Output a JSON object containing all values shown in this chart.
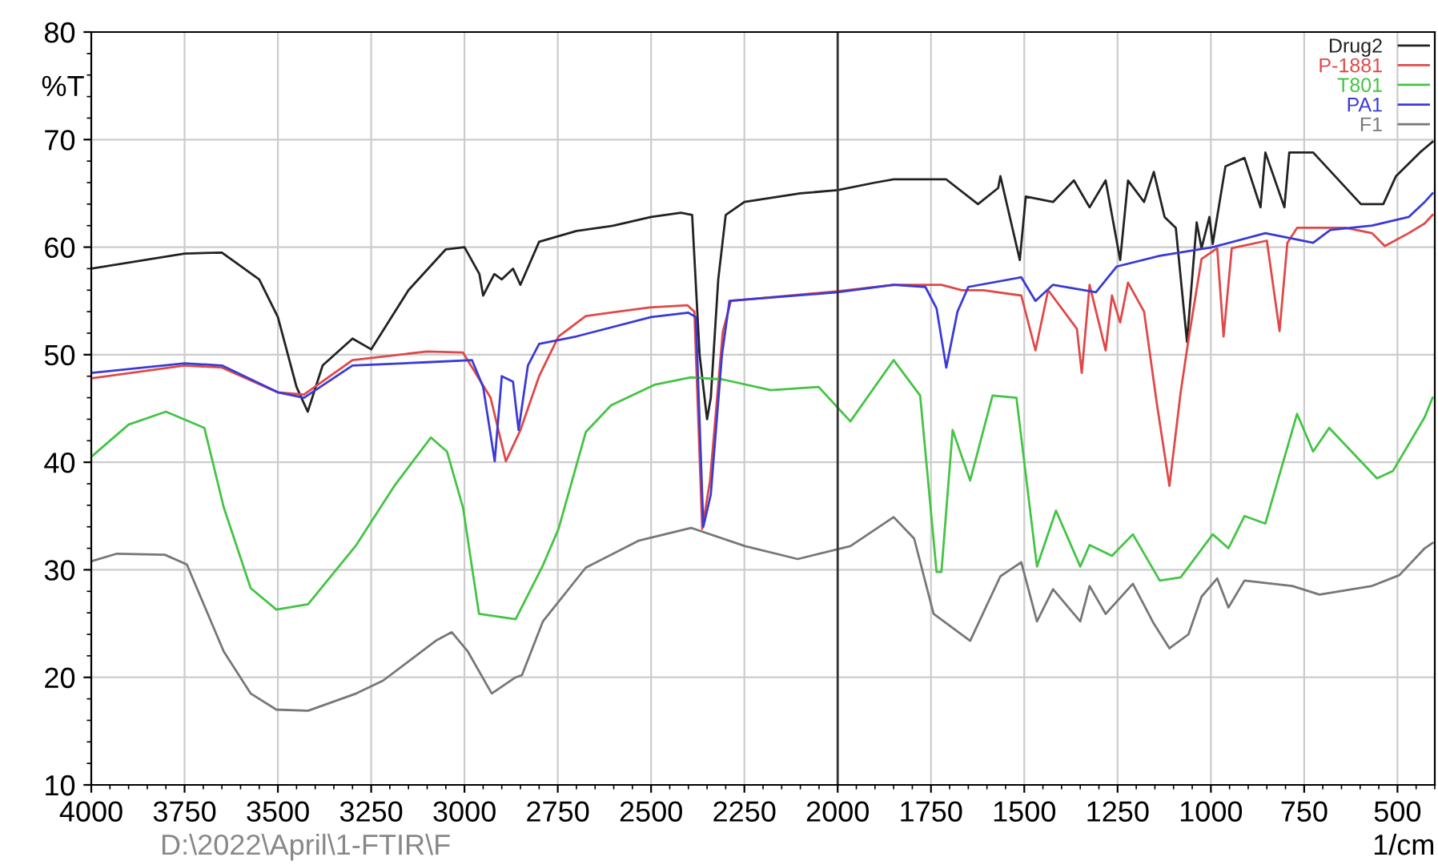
{
  "chart_data": {
    "type": "line",
    "ylabel": "%T",
    "xlabel": "1/cm",
    "annotations": [
      "D:\\2022\\April\\1-FTIR\\F"
    ],
    "xlim": [
      4000,
      400
    ],
    "xticks": [
      4000,
      3750,
      3500,
      3250,
      3000,
      2750,
      2500,
      2250,
      2000,
      1750,
      1500,
      1250,
      1000,
      750,
      500
    ],
    "ylim": [
      10,
      80
    ],
    "yticks": [
      10,
      20,
      30,
      40,
      50,
      60,
      70,
      80
    ],
    "grid": true,
    "legend": "top right",
    "line_style": "solid",
    "marker": "none",
    "ref_lines": [
      {
        "axis": "x",
        "value": 2000,
        "color": "#333333"
      }
    ],
    "series": [
      {
        "name": "Drug2",
        "color": "#222222",
        "x": [
          4000,
          3750,
          3650,
          3550,
          3500,
          3450,
          3420,
          3380,
          3300,
          3250,
          3150,
          3050,
          3000,
          2960,
          2950,
          2920,
          2900,
          2870,
          2850,
          2800,
          2700,
          2600,
          2500,
          2420,
          2390,
          2370,
          2350,
          2340,
          2320,
          2300,
          2250,
          2100,
          2000,
          1900,
          1850,
          1709,
          1624,
          1570,
          1564,
          1512,
          1496,
          1423,
          1367,
          1325,
          1282,
          1243,
          1222,
          1179,
          1153,
          1124,
          1094,
          1064,
          1038,
          1025,
          1004,
          995,
          961,
          910,
          867,
          854,
          803,
          790,
          726,
          598,
          538,
          504,
          440,
          406
        ],
        "values": [
          58.0,
          59.4,
          59.5,
          57,
          53.5,
          47,
          44.7,
          49,
          51.5,
          50.5,
          56,
          59.8,
          60,
          57.5,
          55.5,
          57.5,
          57,
          58,
          56.5,
          60.5,
          61.5,
          62,
          62.8,
          63.2,
          63,
          50,
          44,
          46,
          57,
          63,
          64.2,
          65,
          65.3,
          66,
          66.3,
          66.3,
          64,
          65.5,
          66.6,
          58.8,
          64.7,
          64.2,
          66.2,
          63.7,
          66.2,
          58.8,
          66.2,
          64.2,
          67,
          62.8,
          61.8,
          51.2,
          62.3,
          59.9,
          62.8,
          60.3,
          67.5,
          68.3,
          63.7,
          68.8,
          63.7,
          68.8,
          68.8,
          64,
          64,
          66.6,
          68.8,
          69.8
        ]
      },
      {
        "name": "P-1881",
        "color": "#e04848",
        "x": [
          4000,
          3750,
          3650,
          3500,
          3430,
          3300,
          3100,
          3004,
          2930,
          2889,
          2850,
          2800,
          2748,
          2675,
          2504,
          2403,
          2384,
          2363,
          2342,
          2308,
          2286,
          2000,
          1850,
          1722,
          1667,
          1610,
          1508,
          1470,
          1436,
          1359,
          1346,
          1325,
          1282,
          1265,
          1243,
          1222,
          1179,
          1145,
          1111,
          1081,
          1060,
          1025,
          983,
          966,
          944,
          850,
          816,
          795,
          769,
          640,
          568,
          534,
          470,
          427,
          406
        ],
        "values": [
          47.8,
          49,
          48.8,
          46.5,
          46.3,
          49.5,
          50.3,
          50.2,
          46,
          40.1,
          43,
          48,
          51.7,
          53.6,
          54.4,
          54.6,
          54,
          33.8,
          38.3,
          52.1,
          55,
          55.9,
          56.5,
          56.5,
          56,
          56,
          55.5,
          50.4,
          56,
          52.4,
          48.3,
          56.5,
          50.4,
          55.5,
          53,
          56.7,
          54,
          45.5,
          37.8,
          46.5,
          51.4,
          58.9,
          59.9,
          51.7,
          59.9,
          60.6,
          52.2,
          60.4,
          61.8,
          61.8,
          61.3,
          60.1,
          61.3,
          62.2,
          63
        ]
      },
      {
        "name": "T801",
        "color": "#44c444",
        "x": [
          4000,
          3900,
          3800,
          3697,
          3645,
          3573,
          3504,
          3419,
          3290,
          3188,
          3090,
          3047,
          3004,
          2961,
          2863,
          2790,
          2748,
          2675,
          2607,
          2491,
          2393,
          2308,
          2179,
          2051,
          1966,
          1850,
          1779,
          1735,
          1722,
          1692,
          1645,
          1585,
          1521,
          1466,
          1415,
          1350,
          1325,
          1265,
          1209,
          1137,
          1081,
          995,
          953,
          910,
          854,
          769,
          726,
          683,
          555,
          512,
          427,
          406
        ],
        "values": [
          40.5,
          43.5,
          44.7,
          43.2,
          35.8,
          28.3,
          26.3,
          26.8,
          32.3,
          37.8,
          42.3,
          41,
          35.8,
          25.9,
          25.4,
          30.4,
          33.8,
          42.8,
          45.3,
          47.2,
          47.9,
          47.7,
          46.7,
          47,
          43.8,
          49.5,
          46.2,
          29.8,
          29.8,
          43,
          38.3,
          46.2,
          46,
          30.3,
          35.5,
          30.3,
          32.3,
          31.3,
          33.3,
          29,
          29.3,
          33.3,
          32,
          35,
          34.3,
          44.5,
          41,
          43.2,
          38.5,
          39.2,
          44.2,
          46
        ]
      },
      {
        "name": "PA1",
        "color": "#3a3ad6",
        "x": [
          4000,
          3750,
          3650,
          3500,
          3430,
          3300,
          3100,
          2980,
          2950,
          2919,
          2900,
          2870,
          2855,
          2830,
          2800,
          2700,
          2500,
          2400,
          2380,
          2360,
          2340,
          2310,
          2290,
          2000,
          1850,
          1765,
          1735,
          1709,
          1679,
          1650,
          1508,
          1470,
          1423,
          1308,
          1252,
          1137,
          995,
          854,
          726,
          680,
          568,
          470,
          427,
          406
        ],
        "values": [
          48.3,
          49.2,
          49,
          46.5,
          46,
          49,
          49.3,
          49.5,
          47,
          40.1,
          48,
          47.5,
          43,
          49,
          51,
          51.7,
          53.5,
          53.9,
          53.5,
          34,
          37,
          50,
          55,
          55.8,
          56.5,
          56.3,
          54.3,
          48.8,
          54,
          56.3,
          57.2,
          55,
          56.5,
          55.8,
          58.2,
          59.2,
          60,
          61.3,
          60.4,
          61.6,
          62,
          62.8,
          64.2,
          65
        ]
      },
      {
        "name": "F1",
        "color": "#777777",
        "x": [
          4000,
          3931,
          3803,
          3744,
          3645,
          3573,
          3504,
          3419,
          3290,
          3218,
          3077,
          3034,
          2991,
          2927,
          2863,
          2846,
          2790,
          2675,
          2534,
          2393,
          2248,
          2107,
          1966,
          1850,
          1795,
          1743,
          1645,
          1564,
          1508,
          1466,
          1423,
          1350,
          1325,
          1282,
          1209,
          1153,
          1111,
          1060,
          1025,
          983,
          953,
          910,
          782,
          709,
          568,
          495,
          427,
          406
        ],
        "values": [
          30.8,
          31.5,
          31.4,
          30.5,
          22.4,
          18.5,
          17,
          16.9,
          18.5,
          19.7,
          23.4,
          24.2,
          22.4,
          18.5,
          20,
          20.2,
          25.2,
          30.2,
          32.7,
          33.9,
          32.2,
          31,
          32.2,
          34.9,
          32.9,
          25.9,
          23.4,
          29.4,
          30.7,
          25.2,
          28.2,
          25.2,
          28.5,
          25.9,
          28.7,
          25,
          22.7,
          24,
          27.5,
          29.2,
          26.5,
          29,
          28.5,
          27.7,
          28.5,
          29.5,
          32,
          32.5
        ]
      }
    ]
  }
}
